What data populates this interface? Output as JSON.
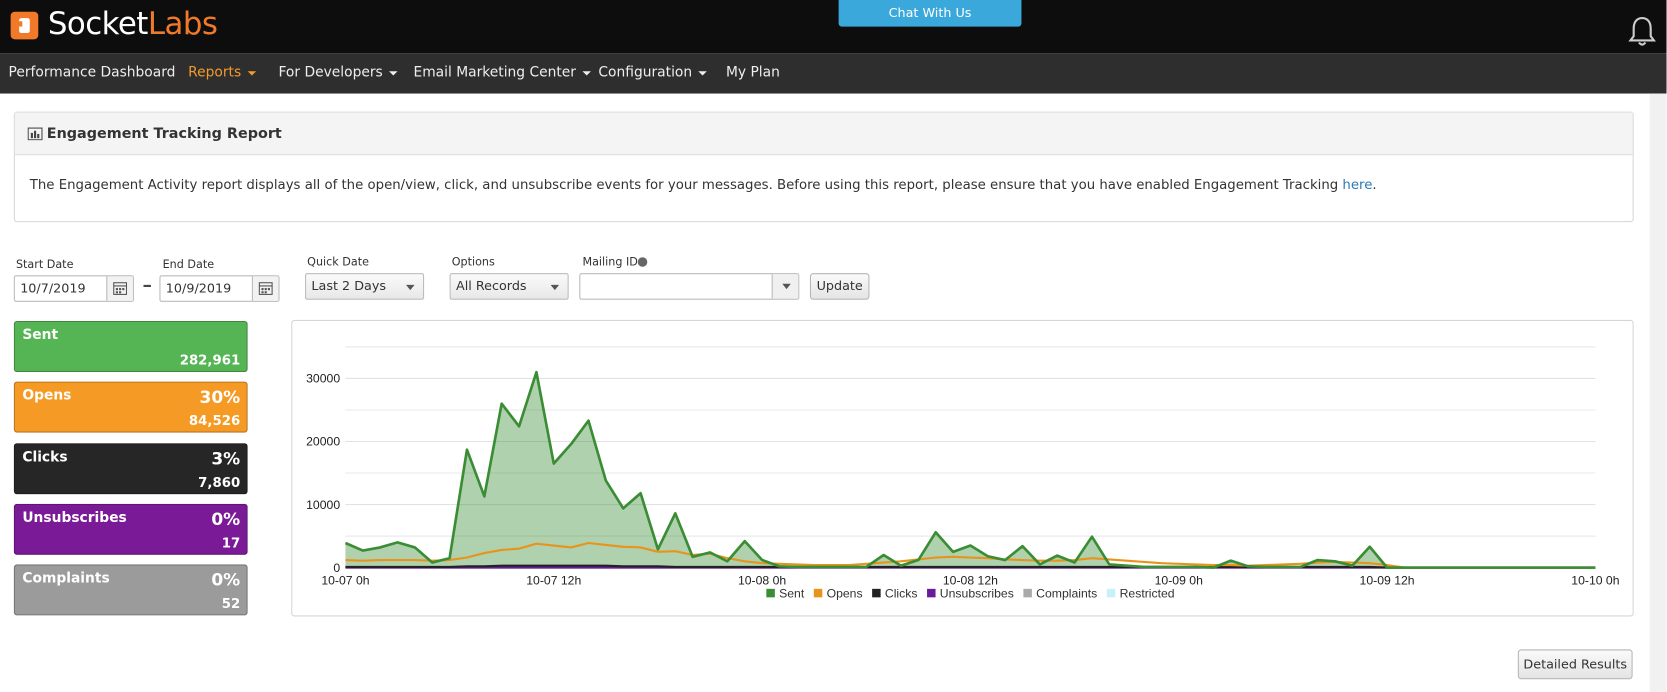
{
  "header": {
    "logo_socket": "Socket",
    "logo_labs": "Labs",
    "chat_button": "Chat With Us"
  },
  "nav": [
    "Performance Dashboard",
    "Reports",
    "For Developers",
    "Email Marketing Center",
    "Configuration",
    "My Plan"
  ],
  "report": {
    "title": "Engagement Tracking Report",
    "description": "The Engagement Activity report displays all of the open/view, click, and unsubscribe events for your messages. Before using this report, please ensure that you have enabled Engagement Tracking",
    "link": "here",
    "description_end": "."
  },
  "filters": {
    "start_date": {
      "label": "Start Date",
      "value": "10/7/2019"
    },
    "end_date": {
      "label": "End Date",
      "value": "10/9/2019"
    },
    "quick_date": {
      "label": "Quick Date",
      "value": "Last 2 Days"
    },
    "options": {
      "label": "Options",
      "value": "All Records"
    },
    "mailing_id": {
      "label": "Mailing ID"
    },
    "update_button": "Update"
  },
  "tiles": [
    {
      "name": "Sent",
      "count": "282,961",
      "color": "#55b555"
    },
    {
      "name": "Opens",
      "percent": "30%",
      "count": "84,526",
      "color": "#f59a25"
    },
    {
      "name": "Clicks",
      "percent": "3%",
      "count": "7,860",
      "color": "#262626"
    },
    {
      "name": "Unsubscribes",
      "percent": "0%",
      "count": "17",
      "color": "#7b1a96"
    },
    {
      "name": "Complaints",
      "percent": "0%",
      "count": "52",
      "color": "#9b9b9b"
    }
  ],
  "chart_data": {
    "type": "line",
    "xlim": [
      0,
      72
    ],
    "ylim": [
      0,
      35000
    ],
    "xticks": [
      {
        "value": 0,
        "label": "10-07 0h"
      },
      {
        "value": 12,
        "label": "10-07 12h"
      },
      {
        "value": 24,
        "label": "10-08 0h"
      },
      {
        "value": 36,
        "label": "10-08 12h"
      },
      {
        "value": 48,
        "label": "10-09 0h"
      },
      {
        "value": 60,
        "label": "10-09 12h"
      },
      {
        "value": 72,
        "label": "10-10 0h"
      }
    ],
    "yticks": [
      0,
      10000,
      20000,
      30000
    ],
    "minor_yticks": [
      5000,
      15000,
      25000,
      35000
    ],
    "grid": true,
    "legend": "bottom",
    "x": [
      0,
      1,
      2,
      3,
      4,
      5,
      6,
      7,
      8,
      9,
      10,
      11,
      12,
      13,
      14,
      15,
      16,
      17,
      18,
      19,
      20,
      21,
      22,
      23,
      24,
      25,
      26,
      27,
      28,
      29,
      30,
      31,
      32,
      33,
      34,
      35,
      36,
      37,
      38,
      39,
      40,
      41,
      42,
      43,
      44,
      45,
      46,
      47,
      48,
      49,
      50,
      51,
      52,
      53,
      54,
      55,
      56,
      57,
      58,
      59,
      60,
      61,
      62,
      63,
      64,
      65,
      66,
      67,
      68,
      69,
      70,
      71,
      72
    ],
    "series": [
      {
        "name": "Sent",
        "color": "#3a8d35",
        "area": true,
        "values": [
          3900,
          2700,
          3200,
          4000,
          3200,
          800,
          1500,
          18700,
          11300,
          26000,
          22400,
          31000,
          16500,
          19600,
          23300,
          13800,
          9400,
          11800,
          2900,
          8600,
          1700,
          2400,
          1000,
          4200,
          1200,
          200,
          100,
          100,
          100,
          100,
          100,
          2000,
          300,
          1200,
          5600,
          2500,
          3500,
          1800,
          1200,
          3400,
          500,
          1900,
          800,
          4900,
          500,
          300,
          100,
          100,
          100,
          100,
          0,
          1100,
          200,
          100,
          100,
          100,
          1200,
          1000,
          300,
          3300,
          0,
          0,
          0,
          0,
          0,
          0,
          0,
          0,
          0,
          0,
          0,
          0,
          0
        ]
      },
      {
        "name": "Opens",
        "color": "#e8941a",
        "values": [
          1200,
          1100,
          1200,
          1200,
          1200,
          1100,
          1200,
          1600,
          2300,
          2800,
          3000,
          3800,
          3500,
          3200,
          3900,
          3600,
          3300,
          3200,
          2500,
          2600,
          2000,
          2200,
          1500,
          1000,
          700,
          600,
          500,
          400,
          400,
          400,
          600,
          800,
          1000,
          1300,
          1600,
          1700,
          1600,
          1500,
          1300,
          1200,
          1100,
          1100,
          1200,
          1500,
          1300,
          1100,
          900,
          700,
          600,
          500,
          400,
          400,
          300,
          400,
          500,
          600,
          800,
          900,
          800,
          700,
          400,
          0,
          0,
          0,
          0,
          0,
          0,
          0,
          0,
          0,
          0,
          0,
          0
        ]
      },
      {
        "name": "Clicks",
        "color": "#222222",
        "values": [
          100,
          100,
          100,
          100,
          100,
          100,
          100,
          200,
          200,
          300,
          300,
          300,
          300,
          300,
          300,
          300,
          200,
          200,
          200,
          100,
          100,
          100,
          100,
          100,
          100,
          100,
          100,
          100,
          100,
          100,
          100,
          100,
          100,
          100,
          100,
          100,
          100,
          100,
          100,
          100,
          100,
          100,
          100,
          100,
          100,
          100,
          100,
          100,
          100,
          100,
          100,
          100,
          100,
          100,
          100,
          100,
          100,
          100,
          100,
          100,
          0,
          0,
          0,
          0,
          0,
          0,
          0,
          0,
          0,
          0,
          0,
          0,
          0
        ]
      },
      {
        "name": "Unsubscribes",
        "color": "#6a1b9a",
        "values": [
          0,
          0,
          0,
          0,
          0,
          0,
          0,
          0,
          0,
          0,
          0,
          0,
          0,
          0,
          0,
          0,
          0,
          0,
          0,
          0,
          0,
          0,
          0,
          0,
          0,
          0,
          0,
          0,
          0,
          0,
          0,
          0,
          0,
          0,
          0,
          0,
          0,
          0,
          0,
          0,
          0,
          0,
          0,
          0,
          0,
          0,
          0,
          0,
          0,
          0,
          0,
          0,
          0,
          0,
          0,
          0,
          0,
          0,
          0,
          0,
          0,
          0,
          0,
          0,
          0,
          0,
          0,
          0,
          0,
          0,
          0,
          0,
          0
        ]
      },
      {
        "name": "Complaints",
        "color": "#aaaaaa",
        "values": [
          0,
          0,
          0,
          0,
          0,
          0,
          0,
          0,
          0,
          0,
          0,
          0,
          0,
          0,
          0,
          0,
          0,
          0,
          0,
          0,
          0,
          0,
          0,
          0,
          0,
          0,
          0,
          0,
          0,
          0,
          0,
          0,
          0,
          0,
          0,
          0,
          0,
          0,
          0,
          0,
          0,
          0,
          0,
          0,
          0,
          0,
          0,
          0,
          0,
          0,
          0,
          0,
          0,
          0,
          0,
          0,
          0,
          0,
          0,
          0,
          0,
          0,
          0,
          0,
          0,
          0,
          0,
          0,
          0,
          0,
          0,
          0,
          0
        ]
      },
      {
        "name": "Restricted",
        "color": "#c8f0f8",
        "values": [
          0,
          0,
          0,
          0,
          0,
          0,
          0,
          0,
          0,
          0,
          0,
          0,
          0,
          0,
          0,
          0,
          0,
          0,
          0,
          0,
          0,
          0,
          0,
          0,
          0,
          0,
          0,
          0,
          0,
          0,
          0,
          0,
          0,
          0,
          0,
          0,
          0,
          0,
          0,
          0,
          0,
          0,
          0,
          0,
          0,
          0,
          0,
          0,
          0,
          0,
          0,
          0,
          0,
          0,
          0,
          0,
          0,
          0,
          0,
          0,
          0,
          0,
          0,
          0,
          0,
          0,
          0,
          0,
          0,
          0,
          0,
          0,
          0
        ]
      }
    ]
  },
  "detailed_results_button": "Detailed Results"
}
